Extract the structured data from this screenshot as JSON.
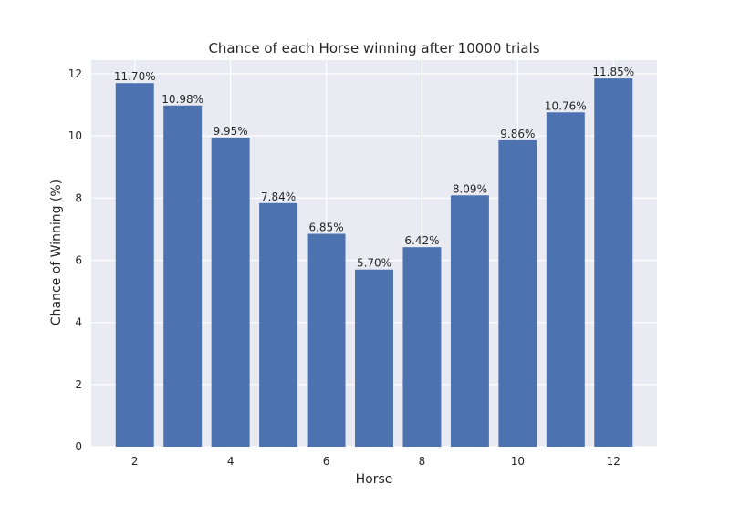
{
  "chart_data": {
    "type": "bar",
    "title": "Chance of each Horse winning after 10000 trials",
    "xlabel": "Horse",
    "ylabel": "Chance of Winning (%)",
    "categories": [
      2,
      3,
      4,
      5,
      6,
      7,
      8,
      9,
      10,
      11,
      12
    ],
    "values": [
      11.7,
      10.98,
      9.95,
      7.84,
      6.85,
      5.7,
      6.42,
      8.09,
      9.86,
      10.76,
      11.85
    ],
    "data_labels": [
      "11.70%",
      "10.98%",
      "9.95%",
      "7.84%",
      "6.85%",
      "5.70%",
      "6.42%",
      "8.09%",
      "9.86%",
      "10.76%",
      "11.85%"
    ],
    "xticks": [
      "2",
      "4",
      "6",
      "8",
      "10",
      "12"
    ],
    "xtick_values": [
      2,
      4,
      6,
      8,
      10,
      12
    ],
    "yticks": [
      "0",
      "2",
      "4",
      "6",
      "8",
      "10",
      "12"
    ],
    "ytick_values": [
      0,
      2,
      4,
      6,
      8,
      10,
      12
    ],
    "xlim": [
      1.09,
      12.91
    ],
    "ylim": [
      0,
      12.44
    ],
    "grid": true,
    "colors": {
      "bar": "#4c72b0",
      "plot_background": "#eaeaf2",
      "grid": "#ffffff"
    }
  }
}
